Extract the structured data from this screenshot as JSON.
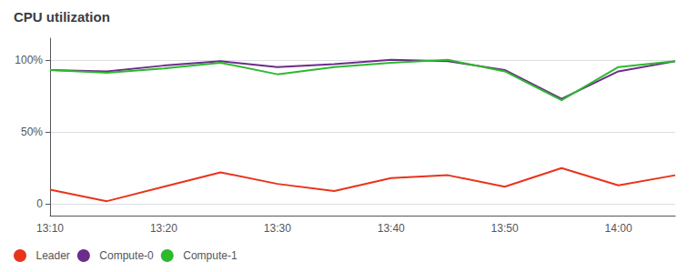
{
  "chart_data": {
    "type": "line",
    "title": "CPU utilization",
    "categories": [
      "13:10",
      null,
      "13:20",
      null,
      "13:30",
      null,
      "13:40",
      null,
      "13:50",
      null,
      "14:00",
      null
    ],
    "series": [
      {
        "name": "Leader",
        "color": "#e8341c",
        "values": [
          10,
          2,
          12,
          22,
          14,
          9,
          18,
          20,
          12,
          25,
          13,
          20
        ]
      },
      {
        "name": "Compute-0",
        "color": "#6b2d8b",
        "values": [
          93,
          92,
          96,
          99,
          95,
          97,
          100,
          99,
          93,
          73,
          92,
          99
        ]
      },
      {
        "name": "Compute-1",
        "color": "#2eb82e",
        "values": [
          93,
          91,
          94,
          98,
          90,
          95,
          98,
          100,
          92,
          72,
          95,
          99
        ]
      }
    ],
    "ylim": [
      -8,
      115
    ],
    "yticks": [
      0,
      {
        "value": 50,
        "label": "50%"
      },
      {
        "value": 100,
        "label": "100%"
      }
    ],
    "grid": true,
    "legend": "lower left"
  }
}
